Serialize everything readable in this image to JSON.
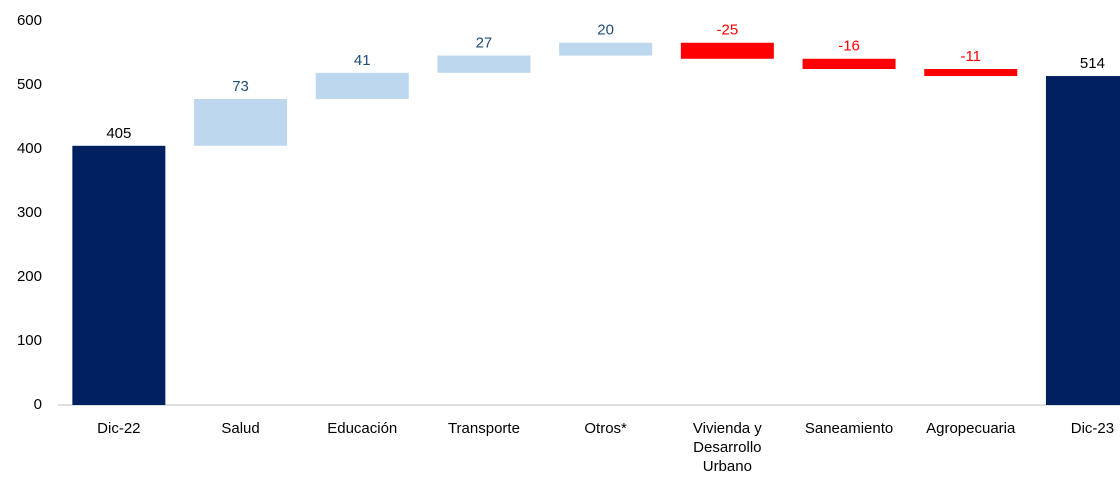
{
  "chart_data": {
    "type": "waterfall",
    "categories": [
      "Dic-22",
      "Salud",
      "Educación",
      "Transporte",
      "Otros*",
      "Vivienda y Desarrollo Urbano",
      "Saneamiento",
      "Agropecuaria",
      "Dic-23"
    ],
    "values": [
      405,
      73,
      41,
      27,
      20,
      -25,
      -16,
      -11,
      514
    ],
    "colors": {
      "total": "#002060",
      "increase": "#bdd7ee",
      "decrease": "#ff0000"
    },
    "label_colors": {
      "total": "#000000",
      "increase": "#1f4e79",
      "decrease": "#ff0000"
    },
    "ylim": [
      0,
      600
    ],
    "yticks": [
      0,
      100,
      200,
      300,
      400,
      500,
      600
    ],
    "grid": false
  }
}
